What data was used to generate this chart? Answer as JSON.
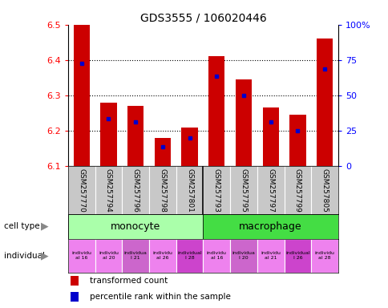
{
  "title": "GDS3555 / 106020446",
  "samples": [
    "GSM257770",
    "GSM257794",
    "GSM257796",
    "GSM257798",
    "GSM257801",
    "GSM257793",
    "GSM257795",
    "GSM257797",
    "GSM257799",
    "GSM257805"
  ],
  "red_values": [
    6.5,
    6.28,
    6.27,
    6.18,
    6.21,
    6.41,
    6.345,
    6.265,
    6.245,
    6.46
  ],
  "blue_values": [
    6.39,
    6.235,
    6.225,
    6.155,
    6.18,
    6.355,
    6.3,
    6.225,
    6.2,
    6.375
  ],
  "y_min": 6.1,
  "y_max": 6.5,
  "y_ticks": [
    6.1,
    6.2,
    6.3,
    6.4,
    6.5
  ],
  "right_y_ticks": [
    0,
    25,
    50,
    75,
    100
  ],
  "right_y_labels": [
    "0",
    "25",
    "50",
    "75",
    "100%"
  ],
  "bar_color_red": "#CC0000",
  "bar_color_blue": "#0000CC",
  "background_gray": "#C8C8C8",
  "monocyte_color": "#AAFFAA",
  "macrophage_color": "#44DD44",
  "indiv_colors": [
    "#EE82EE",
    "#EE82EE",
    "#CC66CC",
    "#EE82EE",
    "#CC44CC",
    "#EE82EE",
    "#CC66CC",
    "#EE82EE",
    "#CC44CC",
    "#EE82EE"
  ],
  "indiv_labels": [
    "individu\nal 16",
    "individu\nal 20",
    "individua\nl 21",
    "individu\nal 26",
    "individual\nl 28",
    "individu\nal 16",
    "individua\nl 20",
    "individu\nal 21",
    "individual\nl 26",
    "individu\nal 28"
  ],
  "legend_red": "transformed count",
  "legend_blue": "percentile rank within the sample"
}
